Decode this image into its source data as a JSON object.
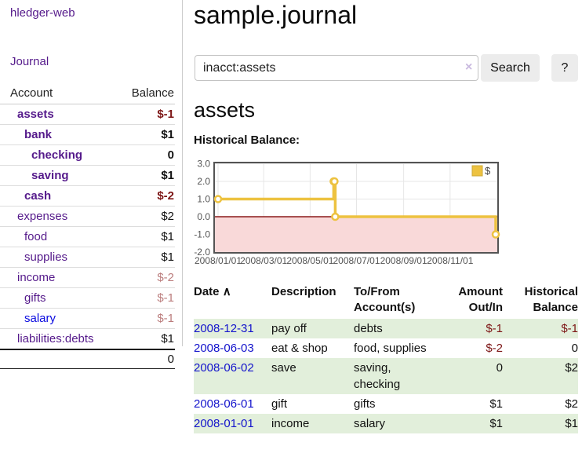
{
  "sidebar": {
    "brand": "hledger-web",
    "nav": {
      "journal": "Journal"
    },
    "table": {
      "account_header": "Account",
      "balance_header": "Balance"
    },
    "accounts": [
      {
        "name": "assets",
        "balance": "$-1",
        "level": 0,
        "bold": true,
        "neg": "strong"
      },
      {
        "name": "bank",
        "balance": "$1",
        "level": 1,
        "bold": true,
        "neg": ""
      },
      {
        "name": "checking",
        "balance": "0",
        "level": 2,
        "bold": true,
        "neg": ""
      },
      {
        "name": "saving",
        "balance": "$1",
        "level": 2,
        "bold": true,
        "neg": ""
      },
      {
        "name": "cash",
        "balance": "$-2",
        "level": 1,
        "bold": true,
        "neg": "strong"
      },
      {
        "name": "expenses",
        "balance": "$2",
        "level": 0,
        "bold": false,
        "neg": ""
      },
      {
        "name": "food",
        "balance": "$1",
        "level": 1,
        "bold": false,
        "neg": ""
      },
      {
        "name": "supplies",
        "balance": "$1",
        "level": 1,
        "bold": false,
        "neg": ""
      },
      {
        "name": "income",
        "balance": "$-2",
        "level": 0,
        "bold": false,
        "neg": "muted"
      },
      {
        "name": "gifts",
        "balance": "$-1",
        "level": 1,
        "bold": false,
        "neg": "muted"
      },
      {
        "name": "salary",
        "balance": "$-1",
        "level": 1,
        "bold": false,
        "neg": "muted",
        "unvisited": true
      },
      {
        "name": "liabilities:debts",
        "balance": "$1",
        "level": 0,
        "bold": false,
        "neg": ""
      }
    ],
    "total": "0"
  },
  "header": {
    "title": "sample.journal"
  },
  "search": {
    "value": "inacct:assets",
    "clear_icon": "×",
    "button_label": "Search",
    "help_label": "?"
  },
  "account_page": {
    "heading": "assets",
    "chart_label": "Historical Balance:"
  },
  "chart_data": {
    "type": "line",
    "title": "Historical Balance",
    "step": true,
    "series": [
      {
        "name": "$",
        "color": "#edc240",
        "points": [
          [
            "2008-01-01",
            1
          ],
          [
            "2008-06-01",
            2
          ],
          [
            "2008-06-02",
            2
          ],
          [
            "2008-06-03",
            0
          ],
          [
            "2008-12-31",
            -1
          ]
        ]
      }
    ],
    "xlim": [
      "2008-01-01",
      "2008-12-31"
    ],
    "ylim": [
      -2,
      3
    ],
    "yticks": [
      3.0,
      2.0,
      1.0,
      0.0,
      -1.0,
      -2.0
    ],
    "xticks": [
      {
        "date": "2008-01-01",
        "label": "2008/01/01"
      },
      {
        "date": "2008-03-01",
        "label": "2008/03/01"
      },
      {
        "date": "2008-05-01",
        "label": "2008/05/01"
      },
      {
        "date": "2008-07-01",
        "label": "2008/07/01"
      },
      {
        "date": "2008-09-01",
        "label": "2008/09/01"
      },
      {
        "date": "2008-11-01",
        "label": "2008/11/01"
      }
    ],
    "grid": true,
    "legend_position": "top-right",
    "negative_region_color": "#f9d9d9",
    "zero_line_color": "#8b1a1a",
    "border_color": "#545454",
    "tick_label_color": "#545454"
  },
  "register": {
    "columns": [
      {
        "label": "Date",
        "sort_icon": "∧"
      },
      {
        "label": "Description"
      },
      {
        "label": "To/From\nAccount(s)"
      },
      {
        "label": "Amount\nOut/In"
      },
      {
        "label": "Historical\nBalance"
      }
    ],
    "rows": [
      {
        "date": "2008-12-31",
        "description": "pay off",
        "accounts": "debts",
        "amount": "$-1",
        "amount_neg": true,
        "balance": "$-1",
        "balance_neg": true,
        "shaded": true
      },
      {
        "date": "2008-06-03",
        "description": "eat & shop",
        "accounts": "food, supplies",
        "amount": "$-2",
        "amount_neg": true,
        "balance": "0",
        "balance_neg": false,
        "shaded": false
      },
      {
        "date": "2008-06-02",
        "description": "save",
        "accounts": "saving, checking",
        "amount": "0",
        "amount_neg": false,
        "balance": "$2",
        "balance_neg": false,
        "shaded": true
      },
      {
        "date": "2008-06-01",
        "description": "gift",
        "accounts": "gifts",
        "amount": "$1",
        "amount_neg": false,
        "balance": "$2",
        "balance_neg": false,
        "shaded": false
      },
      {
        "date": "2008-01-01",
        "description": "income",
        "accounts": "salary",
        "amount": "$1",
        "amount_neg": false,
        "balance": "$1",
        "balance_neg": false,
        "shaded": true
      }
    ]
  }
}
